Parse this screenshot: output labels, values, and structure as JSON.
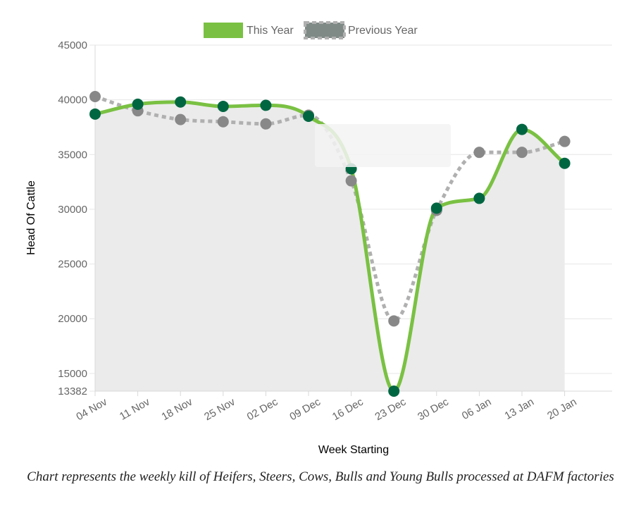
{
  "chart_data": {
    "type": "line",
    "xlabel": "Week Starting",
    "ylabel": "Head Of Cattle",
    "categories": [
      "04 Nov",
      "11 Nov",
      "18 Nov",
      "25 Nov",
      "02 Dec",
      "09 Dec",
      "16 Dec",
      "23 Dec",
      "30 Dec",
      "06 Jan",
      "13 Jan",
      "20 Jan"
    ],
    "ylim": [
      13382,
      45000
    ],
    "yticks": [
      13382,
      15000,
      20000,
      25000,
      30000,
      35000,
      40000,
      45000
    ],
    "grid": true,
    "legend_position": "top",
    "series": [
      {
        "name": "This Year",
        "values": [
          38700,
          39600,
          39800,
          39400,
          39500,
          38500,
          33700,
          13382,
          30100,
          31000,
          37300,
          34200
        ],
        "line_color": "#7ac143",
        "point_color": "#006642",
        "line_style": "solid",
        "fill_color": "#ebebeb"
      },
      {
        "name": "Previous Year",
        "values": [
          40300,
          39000,
          38200,
          38000,
          37800,
          38600,
          32600,
          19800,
          29900,
          35200,
          35200,
          36200
        ],
        "line_color": "#b0b0b0",
        "point_color": "#888888",
        "line_style": "dotted"
      }
    ]
  },
  "caption": "Chart represents the weekly kill of Heifers, Steers, Cows, Bulls and Young Bulls processed at DAFM factories"
}
